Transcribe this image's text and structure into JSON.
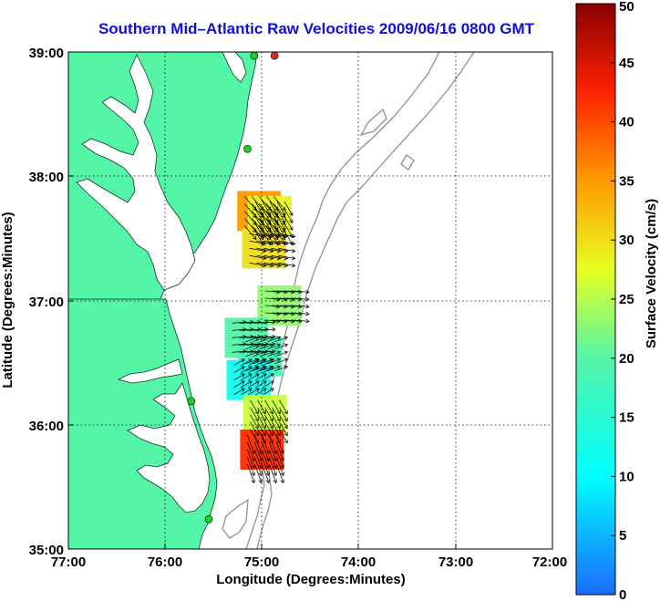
{
  "title": "Southern Mid–Atlantic Raw Velocities 2009/06/16 0800 GMT",
  "x_axis": {
    "label": "Longitude (Degrees:Minutes)",
    "ticks": [
      "77:00",
      "76:00",
      "75:00",
      "74:00",
      "73:00",
      "72:00"
    ]
  },
  "y_axis": {
    "label": "Latitude (Degrees:Minutes)",
    "ticks": [
      "39:00",
      "38:00",
      "37:00",
      "36:00",
      "35:00"
    ]
  },
  "colorbar": {
    "label": "Surface Velocity (cm/s)",
    "ticks": [
      "50",
      "45",
      "40",
      "35",
      "30",
      "25",
      "20",
      "15",
      "10",
      "5",
      "0"
    ],
    "range": [
      0,
      50
    ]
  },
  "colors": {
    "land": "#55f5a8",
    "water": "#ffffff",
    "bathymetry": "#909090",
    "title": "#1010d8",
    "station": "#22cc22",
    "station_alt": "#ee2222"
  },
  "velocity_patches": [
    {
      "lon": -75.03,
      "lat": 37.72,
      "speed": 35,
      "bearing": 140
    },
    {
      "lon": -74.92,
      "lat": 37.68,
      "speed": 28,
      "bearing": 150
    },
    {
      "lon": -74.98,
      "lat": 37.42,
      "speed": 30,
      "bearing": 100
    },
    {
      "lon": -74.82,
      "lat": 36.96,
      "speed": 23,
      "bearing": 95
    },
    {
      "lon": -75.16,
      "lat": 36.7,
      "speed": 20,
      "bearing": 85
    },
    {
      "lon": -75.02,
      "lat": 36.55,
      "speed": 18,
      "bearing": 70
    },
    {
      "lon": -75.14,
      "lat": 36.36,
      "speed": 12,
      "bearing": 60
    },
    {
      "lon": -74.97,
      "lat": 36.08,
      "speed": 26,
      "bearing": 150
    },
    {
      "lon": -75.0,
      "lat": 35.8,
      "speed": 42,
      "bearing": 160
    }
  ],
  "stations": [
    {
      "lon": -74.87,
      "lat": 38.97,
      "type": "alt"
    },
    {
      "lon": -75.08,
      "lat": 38.97,
      "type": "station"
    },
    {
      "lon": -75.15,
      "lat": 38.22,
      "type": "station"
    },
    {
      "lon": -75.73,
      "lat": 36.19,
      "type": "station"
    },
    {
      "lon": -75.55,
      "lat": 35.24,
      "type": "station"
    }
  ]
}
